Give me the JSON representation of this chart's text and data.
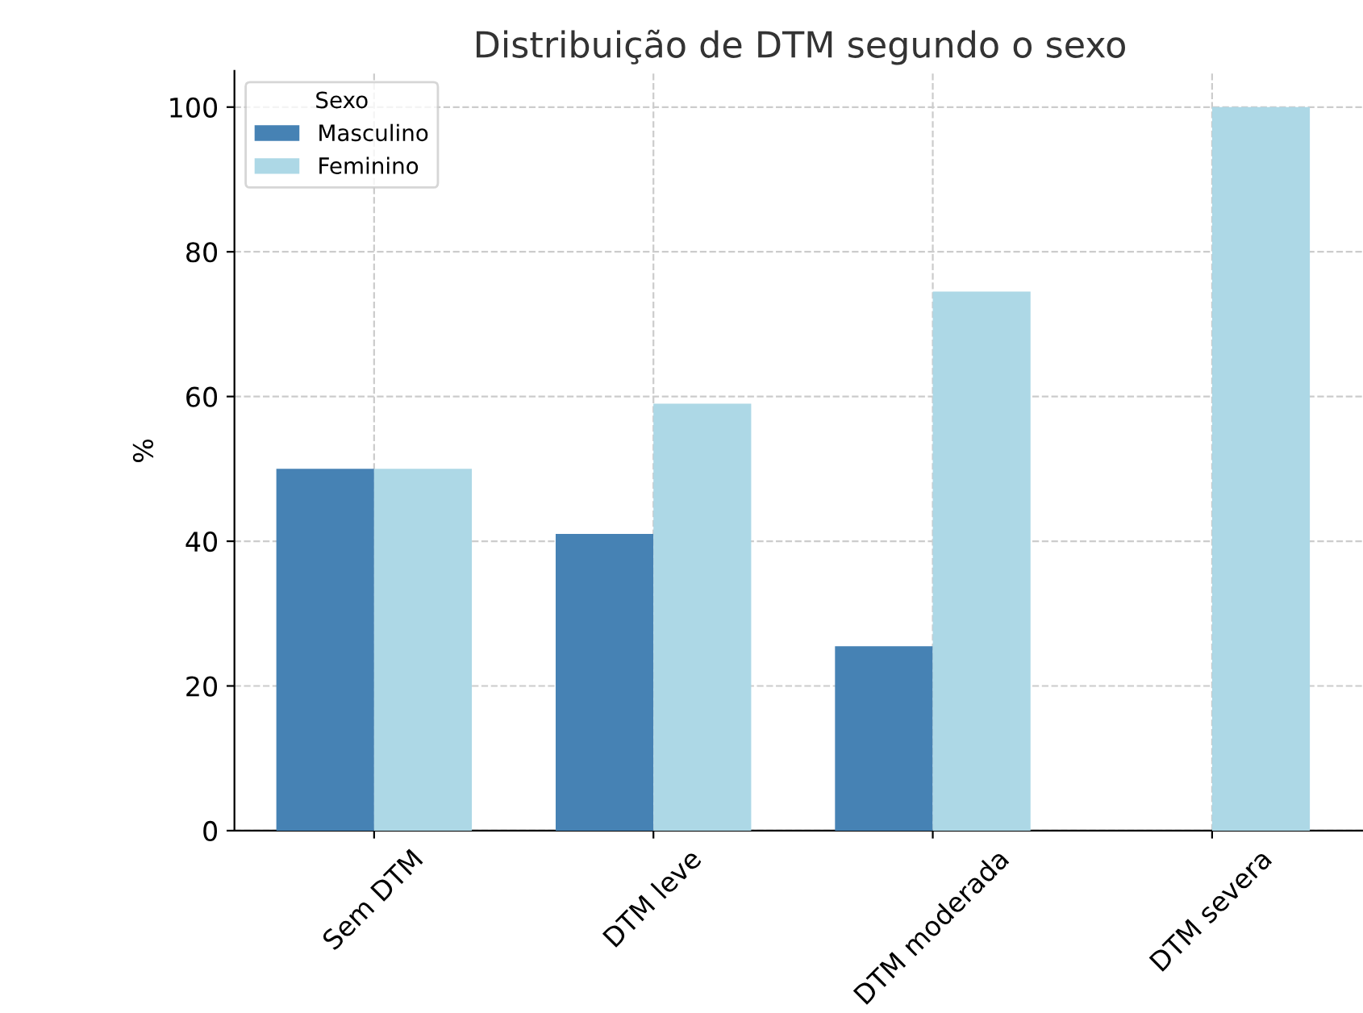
{
  "chart_data": {
    "type": "bar",
    "title": "Distribuição de DTM segundo o sexo",
    "ylabel": "%",
    "legend_title": "Sexo",
    "categories": [
      "Sem DTM",
      "DTM leve",
      "DTM moderada",
      "DTM severa"
    ],
    "series": [
      {
        "name": "Masculino",
        "color": "#4682b4",
        "values": [
          50,
          41,
          25.5,
          0
        ]
      },
      {
        "name": "Feminino",
        "color": "#add8e6",
        "values": [
          50,
          59,
          74.5,
          100
        ]
      }
    ],
    "ylim": [
      0,
      105
    ],
    "yticks": [
      0,
      20,
      40,
      60,
      80,
      100
    ],
    "grid": true,
    "legend": "top left"
  }
}
